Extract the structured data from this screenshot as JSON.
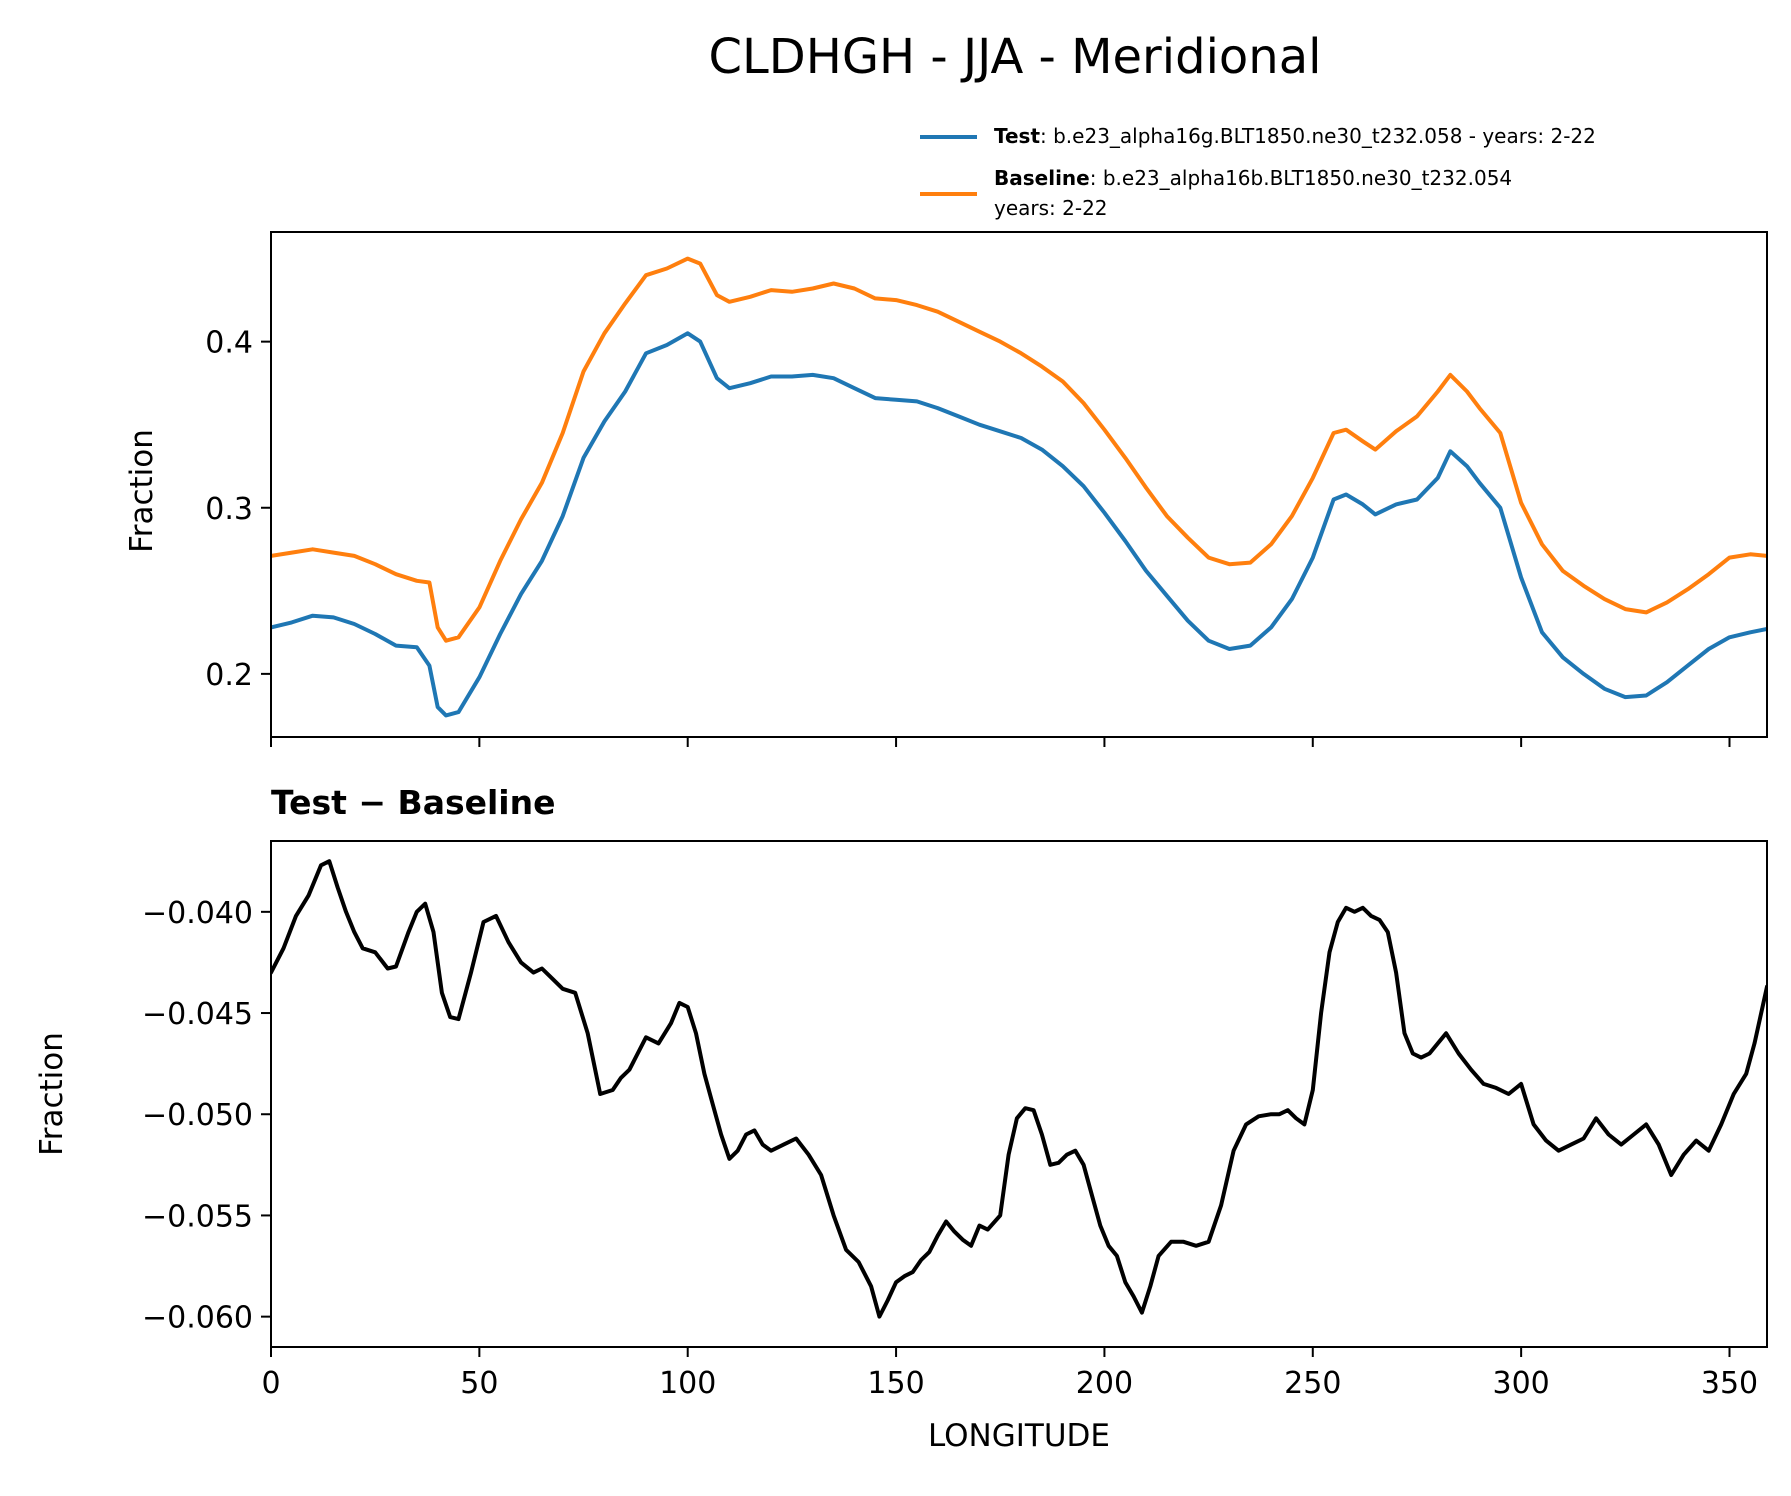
{
  "chart_data": [
    {
      "type": "line",
      "title": "CLDHGH - JJA - Meridional",
      "xlabel": "",
      "ylabel": "Fraction",
      "xlim": [
        0,
        359
      ],
      "ylim": [
        0.162,
        0.466
      ],
      "xticks": [
        0,
        50,
        100,
        150,
        200,
        250,
        300,
        350
      ],
      "yticks": [
        0.2,
        0.3,
        0.4
      ],
      "ytick_labels": [
        "0.2",
        "0.3",
        "0.4"
      ],
      "legend_position": "top-right (above axes)",
      "x": [
        0,
        5,
        10,
        15,
        20,
        25,
        30,
        35,
        38,
        40,
        42,
        45,
        50,
        55,
        60,
        65,
        70,
        75,
        80,
        85,
        90,
        95,
        100,
        103,
        107,
        110,
        115,
        120,
        125,
        130,
        135,
        140,
        145,
        150,
        155,
        160,
        165,
        170,
        175,
        180,
        185,
        190,
        195,
        200,
        205,
        210,
        215,
        220,
        225,
        230,
        235,
        240,
        245,
        250,
        255,
        258,
        262,
        265,
        270,
        275,
        280,
        283,
        287,
        290,
        295,
        300,
        305,
        310,
        315,
        320,
        325,
        330,
        335,
        340,
        345,
        350,
        355,
        359
      ],
      "series": [
        {
          "name": "Test",
          "legend_bold": "Test",
          "legend_rest": ": b.e23_alpha16g.BLT1850.ne30_t232.058 - years: 2-22",
          "color": "#1f77b4",
          "values": [
            0.228,
            0.231,
            0.235,
            0.234,
            0.23,
            0.224,
            0.217,
            0.216,
            0.205,
            0.18,
            0.175,
            0.177,
            0.198,
            0.224,
            0.248,
            0.268,
            0.295,
            0.33,
            0.352,
            0.37,
            0.393,
            0.398,
            0.405,
            0.4,
            0.378,
            0.372,
            0.375,
            0.379,
            0.379,
            0.38,
            0.378,
            0.372,
            0.366,
            0.365,
            0.364,
            0.36,
            0.355,
            0.35,
            0.346,
            0.342,
            0.335,
            0.325,
            0.313,
            0.297,
            0.28,
            0.262,
            0.247,
            0.232,
            0.22,
            0.215,
            0.217,
            0.228,
            0.245,
            0.27,
            0.305,
            0.308,
            0.302,
            0.296,
            0.302,
            0.305,
            0.318,
            0.334,
            0.325,
            0.315,
            0.3,
            0.258,
            0.225,
            0.21,
            0.2,
            0.191,
            0.186,
            0.187,
            0.195,
            0.205,
            0.215,
            0.222,
            0.225,
            0.227
          ]
        },
        {
          "name": "Baseline",
          "legend_bold": "Baseline",
          "legend_rest": ": b.e23_alpha16b.BLT1850.ne30_t232.054",
          "legend_rest2": "years: 2-22",
          "color": "#ff7f0e",
          "values": [
            0.271,
            0.273,
            0.275,
            0.273,
            0.271,
            0.266,
            0.26,
            0.256,
            0.255,
            0.228,
            0.22,
            0.222,
            0.24,
            0.268,
            0.293,
            0.315,
            0.345,
            0.382,
            0.405,
            0.423,
            0.44,
            0.444,
            0.45,
            0.447,
            0.428,
            0.424,
            0.427,
            0.431,
            0.43,
            0.432,
            0.435,
            0.432,
            0.426,
            0.425,
            0.422,
            0.418,
            0.412,
            0.406,
            0.4,
            0.393,
            0.385,
            0.376,
            0.363,
            0.347,
            0.33,
            0.312,
            0.295,
            0.282,
            0.27,
            0.266,
            0.267,
            0.278,
            0.295,
            0.318,
            0.345,
            0.347,
            0.34,
            0.335,
            0.346,
            0.355,
            0.37,
            0.38,
            0.37,
            0.36,
            0.345,
            0.303,
            0.278,
            0.262,
            0.253,
            0.245,
            0.239,
            0.237,
            0.243,
            0.251,
            0.26,
            0.27,
            0.272,
            0.271
          ]
        }
      ]
    },
    {
      "type": "line",
      "title": "Test − Baseline",
      "xlabel": "LONGITUDE",
      "ylabel": "Fraction",
      "xlim": [
        0,
        359
      ],
      "ylim": [
        -0.0615,
        -0.0365
      ],
      "xticks": [
        0,
        50,
        100,
        150,
        200,
        250,
        300,
        350
      ],
      "xtick_labels": [
        "0",
        "50",
        "100",
        "150",
        "200",
        "250",
        "300",
        "350"
      ],
      "yticks": [
        -0.06,
        -0.055,
        -0.05,
        -0.045,
        -0.04
      ],
      "ytick_labels": [
        "−0.060",
        "−0.055",
        "−0.050",
        "−0.045",
        "−0.040"
      ],
      "x": [
        0,
        3,
        6,
        9,
        12,
        14,
        16,
        18,
        20,
        22,
        25,
        28,
        30,
        33,
        35,
        37,
        39,
        41,
        43,
        45,
        48,
        51,
        54,
        57,
        60,
        63,
        65,
        67,
        70,
        73,
        76,
        79,
        82,
        84,
        86,
        88,
        90,
        93,
        96,
        98,
        100,
        102,
        104,
        106,
        108,
        110,
        112,
        114,
        116,
        118,
        120,
        123,
        126,
        129,
        132,
        135,
        138,
        141,
        144,
        146,
        148,
        150,
        152,
        154,
        156,
        158,
        160,
        162,
        164,
        166,
        168,
        170,
        172,
        175,
        177,
        179,
        181,
        183,
        185,
        187,
        189,
        191,
        193,
        195,
        197,
        199,
        201,
        203,
        205,
        207,
        209,
        211,
        213,
        216,
        219,
        222,
        225,
        228,
        231,
        234,
        237,
        240,
        242,
        244,
        246,
        248,
        250,
        252,
        254,
        256,
        258,
        260,
        262,
        264,
        266,
        268,
        270,
        272,
        274,
        276,
        278,
        280,
        282,
        285,
        288,
        291,
        294,
        297,
        300,
        303,
        306,
        309,
        312,
        315,
        318,
        321,
        324,
        327,
        330,
        333,
        336,
        339,
        342,
        345,
        348,
        351,
        354,
        356,
        359
      ],
      "series": [
        {
          "name": "Test − Baseline",
          "color": "#000000",
          "values": [
            -0.043,
            -0.0418,
            -0.0402,
            -0.0392,
            -0.0377,
            -0.0375,
            -0.0388,
            -0.04,
            -0.041,
            -0.0418,
            -0.042,
            -0.0428,
            -0.0427,
            -0.041,
            -0.04,
            -0.0396,
            -0.041,
            -0.044,
            -0.0452,
            -0.0453,
            -0.043,
            -0.0405,
            -0.0402,
            -0.0415,
            -0.0425,
            -0.043,
            -0.0428,
            -0.0432,
            -0.0438,
            -0.044,
            -0.046,
            -0.049,
            -0.0488,
            -0.0482,
            -0.0478,
            -0.047,
            -0.0462,
            -0.0465,
            -0.0455,
            -0.0445,
            -0.0447,
            -0.046,
            -0.048,
            -0.0495,
            -0.051,
            -0.0522,
            -0.0518,
            -0.051,
            -0.0508,
            -0.0515,
            -0.0518,
            -0.0515,
            -0.0512,
            -0.052,
            -0.053,
            -0.055,
            -0.0567,
            -0.0573,
            -0.0585,
            -0.06,
            -0.0592,
            -0.0583,
            -0.058,
            -0.0578,
            -0.0572,
            -0.0568,
            -0.056,
            -0.0553,
            -0.0558,
            -0.0562,
            -0.0565,
            -0.0555,
            -0.0557,
            -0.055,
            -0.052,
            -0.0502,
            -0.0497,
            -0.0498,
            -0.051,
            -0.0525,
            -0.0524,
            -0.052,
            -0.0518,
            -0.0525,
            -0.054,
            -0.0555,
            -0.0565,
            -0.057,
            -0.0583,
            -0.059,
            -0.0598,
            -0.0585,
            -0.057,
            -0.0563,
            -0.0563,
            -0.0565,
            -0.0563,
            -0.0545,
            -0.0518,
            -0.0505,
            -0.0501,
            -0.05,
            -0.05,
            -0.0498,
            -0.0502,
            -0.0505,
            -0.0488,
            -0.045,
            -0.042,
            -0.0405,
            -0.0398,
            -0.04,
            -0.0398,
            -0.0402,
            -0.0404,
            -0.041,
            -0.043,
            -0.046,
            -0.047,
            -0.0472,
            -0.047,
            -0.0465,
            -0.046,
            -0.047,
            -0.0478,
            -0.0485,
            -0.0487,
            -0.049,
            -0.0485,
            -0.0505,
            -0.0513,
            -0.0518,
            -0.0515,
            -0.0512,
            -0.0502,
            -0.051,
            -0.0515,
            -0.051,
            -0.0505,
            -0.0515,
            -0.053,
            -0.052,
            -0.0513,
            -0.0518,
            -0.0505,
            -0.049,
            -0.048,
            -0.0465,
            -0.0437
          ]
        }
      ]
    }
  ]
}
